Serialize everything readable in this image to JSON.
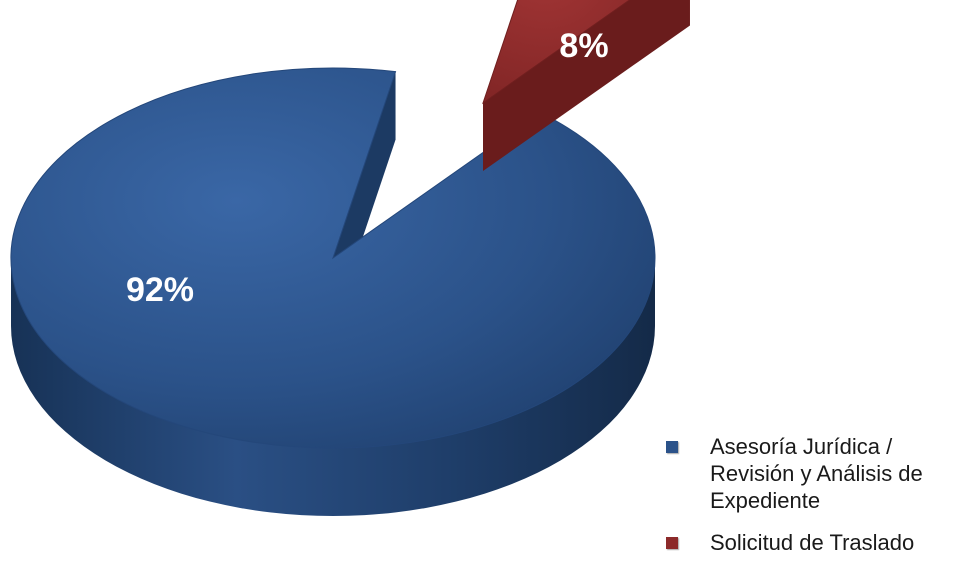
{
  "chart_data": {
    "type": "pie",
    "categories": [
      "Asesoría Jurídica / Revisión y Análisis de Expediente",
      "Solicitud de Traslado"
    ],
    "values": [
      92,
      8
    ],
    "labels": [
      "92%",
      "8%"
    ],
    "colors": [
      "#2b5289",
      "#8c2a2a"
    ],
    "style": "3d-exploded",
    "legend_position": "bottom-right",
    "title": ""
  },
  "legend": {
    "items": [
      {
        "label": "Asesoría Jurídica / Revisión y Análisis de Expediente",
        "color": "#2b5289"
      },
      {
        "label": "Solicitud de Traslado",
        "color": "#8c2a2a"
      }
    ]
  }
}
